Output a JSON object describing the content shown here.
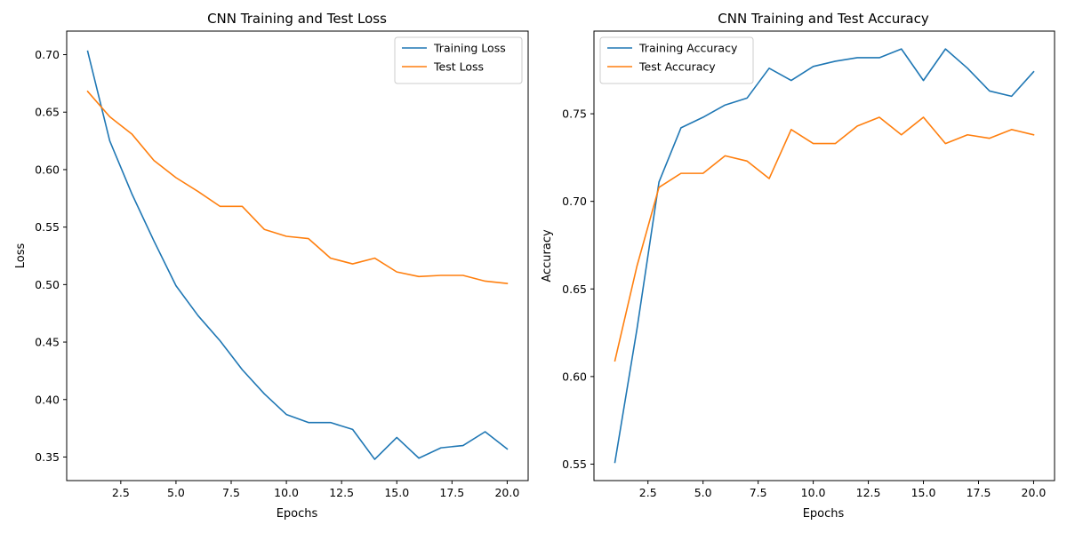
{
  "chart_data": [
    {
      "type": "line",
      "title": "CNN Training and Test Loss",
      "xlabel": "Epochs",
      "ylabel": "Loss",
      "xlim": [
        0.05,
        20.95
      ],
      "ylim": [
        0.3295,
        0.7205
      ],
      "xticks": [
        2.5,
        5.0,
        7.5,
        10.0,
        12.5,
        15.0,
        17.5,
        20.0
      ],
      "xtick_labels": [
        "2.5",
        "5.0",
        "7.5",
        "10.0",
        "12.5",
        "15.0",
        "17.5",
        "20.0"
      ],
      "yticks": [
        0.35,
        0.4,
        0.45,
        0.5,
        0.55,
        0.6,
        0.65,
        0.7
      ],
      "ytick_labels": [
        "0.35",
        "0.40",
        "0.45",
        "0.50",
        "0.55",
        "0.60",
        "0.65",
        "0.70"
      ],
      "grid": false,
      "legend_position": "top-right",
      "x": [
        1,
        2,
        3,
        4,
        5,
        6,
        7,
        8,
        9,
        10,
        11,
        12,
        13,
        14,
        15,
        16,
        17,
        18,
        19,
        20
      ],
      "series": [
        {
          "name": "Training Loss",
          "color": "#1f77b4",
          "values": [
            0.703,
            0.625,
            0.579,
            0.538,
            0.499,
            0.473,
            0.451,
            0.426,
            0.405,
            0.387,
            0.38,
            0.38,
            0.374,
            0.348,
            0.367,
            0.349,
            0.358,
            0.36,
            0.372,
            0.357
          ]
        },
        {
          "name": "Test Loss",
          "color": "#ff7f0e",
          "values": [
            0.668,
            0.646,
            0.631,
            0.608,
            0.593,
            0.581,
            0.568,
            0.568,
            0.548,
            0.542,
            0.54,
            0.523,
            0.518,
            0.523,
            0.511,
            0.507,
            0.508,
            0.508,
            0.503,
            0.501
          ]
        }
      ]
    },
    {
      "type": "line",
      "title": "CNN Training and Test Accuracy",
      "xlabel": "Epochs",
      "ylabel": "Accuracy",
      "xlim": [
        0.05,
        20.95
      ],
      "ylim": [
        0.5406,
        0.7972
      ],
      "xticks": [
        2.5,
        5.0,
        7.5,
        10.0,
        12.5,
        15.0,
        17.5,
        20.0
      ],
      "xtick_labels": [
        "2.5",
        "5.0",
        "7.5",
        "10.0",
        "12.5",
        "15.0",
        "17.5",
        "20.0"
      ],
      "yticks": [
        0.55,
        0.6,
        0.65,
        0.7,
        0.75
      ],
      "ytick_labels": [
        "0.55",
        "0.60",
        "0.65",
        "0.70",
        "0.75"
      ],
      "grid": false,
      "legend_position": "top-left",
      "x": [
        1,
        2,
        3,
        4,
        5,
        6,
        7,
        8,
        9,
        10,
        11,
        12,
        13,
        14,
        15,
        16,
        17,
        18,
        19,
        20
      ],
      "series": [
        {
          "name": "Training Accuracy",
          "color": "#1f77b4",
          "values": [
            0.551,
            0.627,
            0.711,
            0.742,
            0.748,
            0.755,
            0.759,
            0.776,
            0.769,
            0.777,
            0.78,
            0.782,
            0.782,
            0.787,
            0.769,
            0.787,
            0.776,
            0.763,
            0.76,
            0.774
          ]
        },
        {
          "name": "Test Accuracy",
          "color": "#ff7f0e",
          "values": [
            0.609,
            0.663,
            0.708,
            0.716,
            0.716,
            0.726,
            0.723,
            0.713,
            0.741,
            0.733,
            0.733,
            0.743,
            0.748,
            0.738,
            0.748,
            0.733,
            0.738,
            0.736,
            0.741,
            0.738
          ]
        }
      ]
    }
  ]
}
